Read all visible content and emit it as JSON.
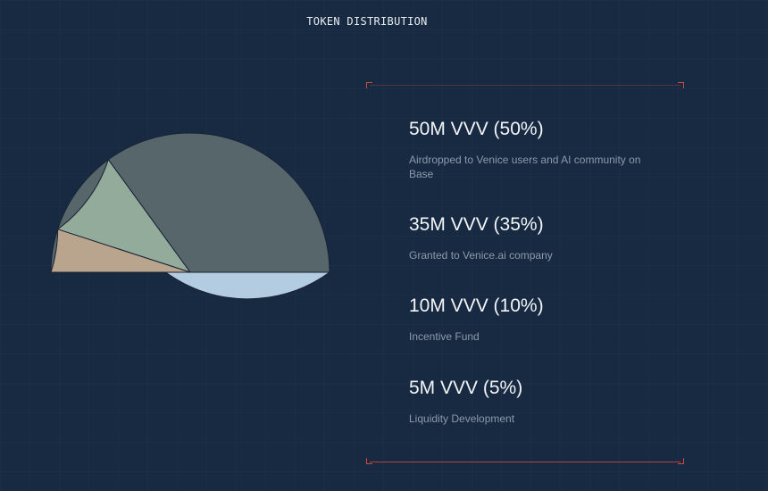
{
  "page": {
    "title": "TOKEN DISTRIBUTION"
  },
  "chart_data": {
    "type": "pie",
    "title": "TOKEN DISTRIBUTION",
    "unit": "M VVV",
    "slices": [
      {
        "value": 50,
        "percent": 50,
        "label": "50M VVV (50%)",
        "description": "Airdropped to Venice users and AI community on Base",
        "color": "#56666b"
      },
      {
        "value": 35,
        "percent": 35,
        "label": "35M VVV (35%)",
        "description": "Granted to Venice.ai company",
        "color": "#b3cce1"
      },
      {
        "value": 10,
        "percent": 10,
        "label": "10M VVV (10%)",
        "description": "Incentive Fund",
        "color": "#93ab9a"
      },
      {
        "value": 5,
        "percent": 5,
        "label": "5M VVV (5%)",
        "description": "Liquidity Development",
        "color": "#b9a48e"
      }
    ],
    "legend_position": "right",
    "grid": false
  }
}
